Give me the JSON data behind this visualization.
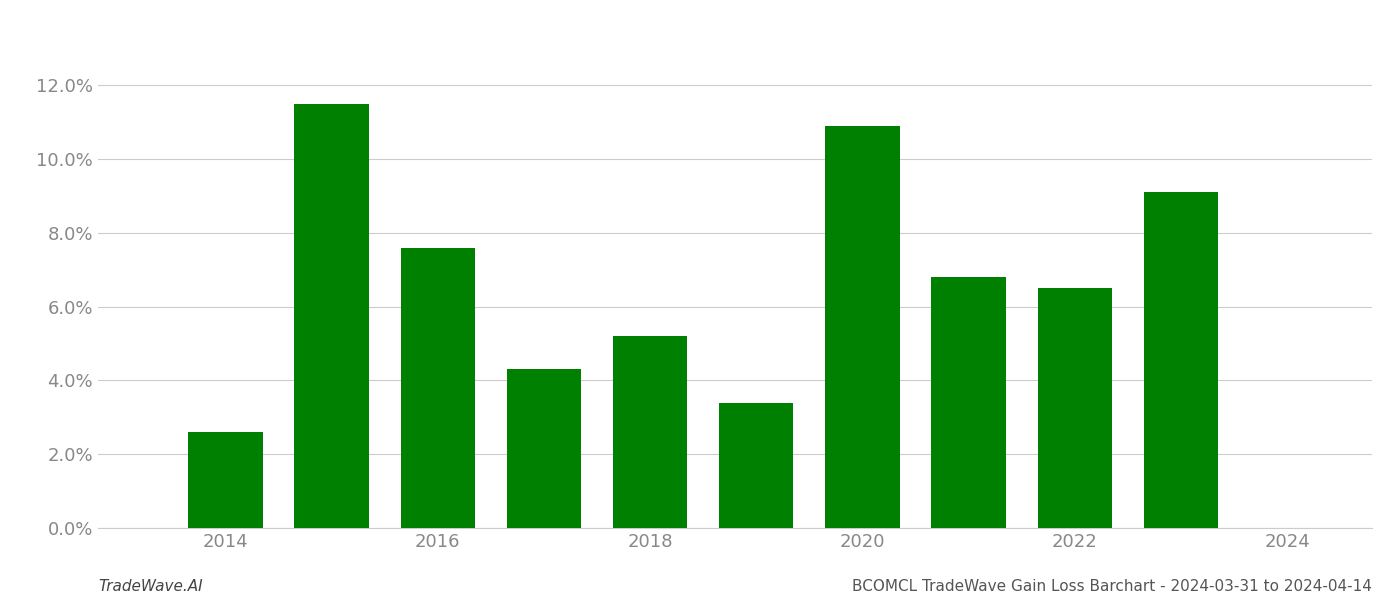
{
  "years": [
    2014,
    2015,
    2016,
    2017,
    2018,
    2019,
    2020,
    2021,
    2022,
    2023
  ],
  "values": [
    0.026,
    0.115,
    0.076,
    0.043,
    0.052,
    0.034,
    0.109,
    0.068,
    0.065,
    0.091
  ],
  "bar_color": "#008000",
  "background_color": "#ffffff",
  "ylim": [
    0,
    0.135
  ],
  "yticks": [
    0.0,
    0.02,
    0.04,
    0.06,
    0.08,
    0.1,
    0.12
  ],
  "xticks": [
    2014,
    2016,
    2018,
    2020,
    2022,
    2024
  ],
  "xlim": [
    2012.8,
    2024.8
  ],
  "xlabel": "",
  "ylabel": "",
  "title": "",
  "footer_left": "TradeWave.AI",
  "footer_right": "BCOMCL TradeWave Gain Loss Barchart - 2024-03-31 to 2024-04-14",
  "grid_color": "#cccccc",
  "tick_color": "#888888",
  "footer_fontsize": 11,
  "bar_width": 0.7
}
